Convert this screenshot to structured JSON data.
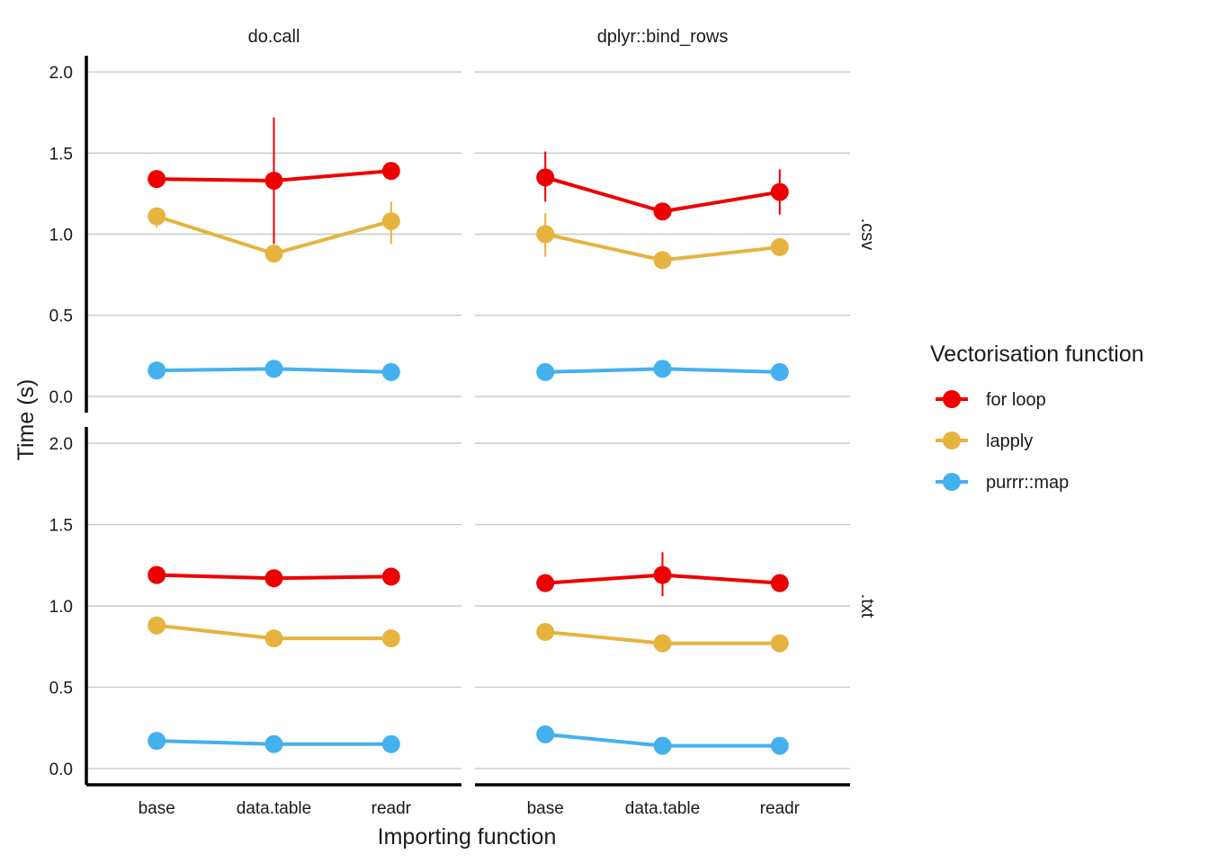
{
  "chart_data": {
    "type": "line",
    "xlabel": "Importing function",
    "ylabel": "Time (s)",
    "categories": [
      "base",
      "data.table",
      "readr"
    ],
    "ylim": [
      -0.1,
      2.1
    ],
    "yticks": [
      0.0,
      0.5,
      1.0,
      1.5,
      2.0
    ],
    "ytick_labels": [
      "0.0",
      "0.5",
      "1.0",
      "1.5",
      "2.0"
    ],
    "grid": true,
    "legend": {
      "title": "Vectorisation function",
      "position": "right",
      "entries": [
        "for loop",
        "lapply",
        "purrr::map"
      ]
    },
    "series_colors": {
      "for loop": "#ee0000",
      "lapply": "#e6b33e",
      "purrr::map": "#44b0ee"
    },
    "col_facets": [
      "do.call",
      "dplyr::bind_rows"
    ],
    "row_facets": [
      ".csv",
      ".txt"
    ],
    "panels": [
      {
        "col": "do.call",
        "row": ".csv",
        "series": [
          {
            "name": "for loop",
            "values": [
              1.34,
              1.33,
              1.39
            ],
            "err_low": [
              1.34,
              0.94,
              1.39
            ],
            "err_high": [
              1.34,
              1.72,
              1.39
            ]
          },
          {
            "name": "lapply",
            "values": [
              1.11,
              0.88,
              1.08
            ],
            "err_low": [
              1.04,
              0.88,
              0.94
            ],
            "err_high": [
              1.16,
              0.88,
              1.2
            ]
          },
          {
            "name": "purrr::map",
            "values": [
              0.16,
              0.17,
              0.15
            ],
            "err_low": [
              0.16,
              0.17,
              0.15
            ],
            "err_high": [
              0.16,
              0.17,
              0.15
            ]
          }
        ]
      },
      {
        "col": "dplyr::bind_rows",
        "row": ".csv",
        "series": [
          {
            "name": "for loop",
            "values": [
              1.35,
              1.14,
              1.26
            ],
            "err_low": [
              1.2,
              1.14,
              1.12
            ],
            "err_high": [
              1.51,
              1.14,
              1.4
            ]
          },
          {
            "name": "lapply",
            "values": [
              1.0,
              0.84,
              0.92
            ],
            "err_low": [
              0.86,
              0.84,
              0.92
            ],
            "err_high": [
              1.13,
              0.84,
              0.92
            ]
          },
          {
            "name": "purrr::map",
            "values": [
              0.15,
              0.17,
              0.15
            ],
            "err_low": [
              0.15,
              0.17,
              0.15
            ],
            "err_high": [
              0.15,
              0.17,
              0.15
            ]
          }
        ]
      },
      {
        "col": "do.call",
        "row": ".txt",
        "series": [
          {
            "name": "for loop",
            "values": [
              1.19,
              1.17,
              1.18
            ],
            "err_low": [
              1.19,
              1.17,
              1.18
            ],
            "err_high": [
              1.19,
              1.17,
              1.18
            ]
          },
          {
            "name": "lapply",
            "values": [
              0.88,
              0.8,
              0.8
            ],
            "err_low": [
              0.88,
              0.8,
              0.8
            ],
            "err_high": [
              0.88,
              0.8,
              0.8
            ]
          },
          {
            "name": "purrr::map",
            "values": [
              0.17,
              0.15,
              0.15
            ],
            "err_low": [
              0.17,
              0.15,
              0.15
            ],
            "err_high": [
              0.17,
              0.15,
              0.15
            ]
          }
        ]
      },
      {
        "col": "dplyr::bind_rows",
        "row": ".txt",
        "series": [
          {
            "name": "for loop",
            "values": [
              1.14,
              1.19,
              1.14
            ],
            "err_low": [
              1.14,
              1.06,
              1.14
            ],
            "err_high": [
              1.14,
              1.33,
              1.14
            ]
          },
          {
            "name": "lapply",
            "values": [
              0.84,
              0.77,
              0.77
            ],
            "err_low": [
              0.84,
              0.77,
              0.77
            ],
            "err_high": [
              0.84,
              0.77,
              0.77
            ]
          },
          {
            "name": "purrr::map",
            "values": [
              0.21,
              0.14,
              0.14
            ],
            "err_low": [
              0.21,
              0.14,
              0.14
            ],
            "err_high": [
              0.21,
              0.14,
              0.14
            ]
          }
        ]
      }
    ]
  }
}
